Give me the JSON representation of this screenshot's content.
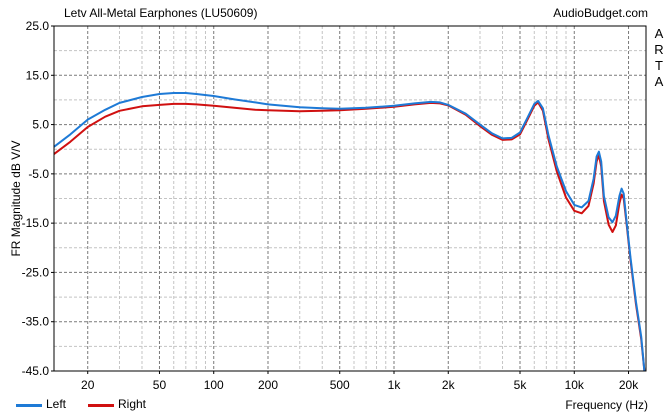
{
  "header": {
    "title": "Letv All-Metal Earphones (LU50609)",
    "source": "AudioBudget.com",
    "watermark_letters": [
      "A",
      "R",
      "T",
      "A"
    ]
  },
  "chart_data": {
    "type": "line",
    "title": "Letv All-Metal Earphones (LU50609)",
    "xlabel": "Frequency (Hz)",
    "ylabel": "FR Magnitude dB V/V",
    "x_scale": "log",
    "xlim": [
      13,
      25000
    ],
    "ylim": [
      -45,
      25
    ],
    "grid": true,
    "legend_position": "bottom-left",
    "y_ticks": [
      "25.0",
      "15.0",
      "5.0",
      "-5.0",
      "-15.0",
      "-25.0",
      "-35.0",
      "-45.0"
    ],
    "y_tick_values": [
      25,
      15,
      5,
      -5,
      -15,
      -25,
      -35,
      -45
    ],
    "x_ticks": [
      "20",
      "50",
      "100",
      "200",
      "500",
      "1k",
      "2k",
      "5k",
      "10k",
      "20k"
    ],
    "x_tick_values": [
      20,
      50,
      100,
      200,
      500,
      1000,
      2000,
      5000,
      10000,
      20000
    ],
    "series": [
      {
        "name": "Left",
        "color": "#1e7ad6",
        "points": [
          [
            13,
            0.5
          ],
          [
            16,
            3
          ],
          [
            20,
            6
          ],
          [
            25,
            8
          ],
          [
            30,
            9.4
          ],
          [
            40,
            10.6
          ],
          [
            50,
            11.2
          ],
          [
            60,
            11.4
          ],
          [
            70,
            11.4
          ],
          [
            80,
            11.2
          ],
          [
            100,
            10.8
          ],
          [
            130,
            10.1
          ],
          [
            170,
            9.5
          ],
          [
            200,
            9.1
          ],
          [
            300,
            8.5
          ],
          [
            400,
            8.3
          ],
          [
            500,
            8.2
          ],
          [
            700,
            8.4
          ],
          [
            1000,
            8.8
          ],
          [
            1300,
            9.3
          ],
          [
            1600,
            9.6
          ],
          [
            1800,
            9.5
          ],
          [
            2000,
            9.0
          ],
          [
            2500,
            7.2
          ],
          [
            3000,
            5.0
          ],
          [
            3500,
            3.2
          ],
          [
            4000,
            2.2
          ],
          [
            4500,
            2.3
          ],
          [
            5000,
            3.4
          ],
          [
            5500,
            6.4
          ],
          [
            6000,
            9.2
          ],
          [
            6300,
            9.8
          ],
          [
            6700,
            8.3
          ],
          [
            7200,
            2.8
          ],
          [
            8000,
            -3.5
          ],
          [
            9000,
            -8.5
          ],
          [
            10000,
            -11.3
          ],
          [
            11000,
            -11.8
          ],
          [
            12000,
            -10.5
          ],
          [
            12800,
            -6
          ],
          [
            13300,
            -1.5
          ],
          [
            13700,
            -0.5
          ],
          [
            14100,
            -2.5
          ],
          [
            14600,
            -9.5
          ],
          [
            15500,
            -13.8
          ],
          [
            16300,
            -14.8
          ],
          [
            17000,
            -13.5
          ],
          [
            17800,
            -9.5
          ],
          [
            18300,
            -8.0
          ],
          [
            18800,
            -9.0
          ],
          [
            19500,
            -14.5
          ],
          [
            20500,
            -22
          ],
          [
            22000,
            -31
          ],
          [
            23500,
            -38
          ],
          [
            24500,
            -45
          ]
        ]
      },
      {
        "name": "Right",
        "color": "#d01010",
        "points": [
          [
            13,
            -1
          ],
          [
            16,
            1.5
          ],
          [
            20,
            4.5
          ],
          [
            25,
            6.6
          ],
          [
            30,
            7.8
          ],
          [
            40,
            8.7
          ],
          [
            50,
            9.0
          ],
          [
            60,
            9.2
          ],
          [
            70,
            9.2
          ],
          [
            80,
            9.1
          ],
          [
            100,
            8.8
          ],
          [
            130,
            8.4
          ],
          [
            170,
            8.0
          ],
          [
            200,
            7.9
          ],
          [
            300,
            7.7
          ],
          [
            400,
            7.8
          ],
          [
            500,
            7.9
          ],
          [
            700,
            8.2
          ],
          [
            1000,
            8.6
          ],
          [
            1300,
            9.1
          ],
          [
            1600,
            9.4
          ],
          [
            1800,
            9.3
          ],
          [
            2000,
            8.9
          ],
          [
            2500,
            7.0
          ],
          [
            3000,
            4.7
          ],
          [
            3500,
            2.9
          ],
          [
            4000,
            1.9
          ],
          [
            4500,
            2.0
          ],
          [
            5000,
            3.0
          ],
          [
            5500,
            6.0
          ],
          [
            6000,
            8.8
          ],
          [
            6300,
            9.5
          ],
          [
            6700,
            7.8
          ],
          [
            7200,
            2.0
          ],
          [
            8000,
            -4.5
          ],
          [
            9000,
            -9.8
          ],
          [
            10000,
            -12.5
          ],
          [
            11000,
            -13
          ],
          [
            12000,
            -11.5
          ],
          [
            12800,
            -7
          ],
          [
            13300,
            -2.5
          ],
          [
            13700,
            -1.2
          ],
          [
            14100,
            -3.5
          ],
          [
            14600,
            -10.5
          ],
          [
            15500,
            -15.3
          ],
          [
            16300,
            -16.8
          ],
          [
            17000,
            -15.5
          ],
          [
            17800,
            -11
          ],
          [
            18300,
            -9.2
          ],
          [
            18800,
            -10
          ],
          [
            19500,
            -15
          ],
          [
            20500,
            -22.5
          ],
          [
            22000,
            -31.5
          ],
          [
            23500,
            -38.5
          ],
          [
            24500,
            -45
          ]
        ]
      }
    ]
  }
}
